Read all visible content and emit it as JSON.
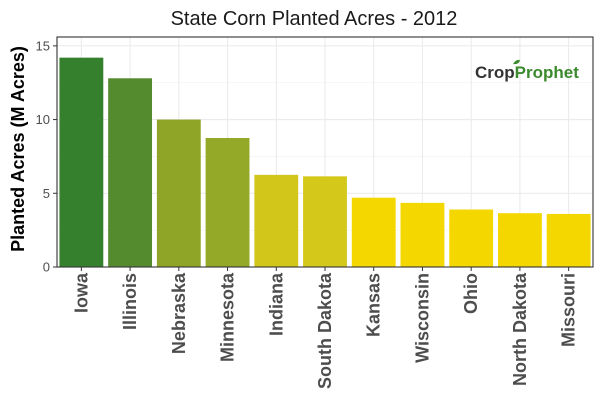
{
  "chart_data": {
    "type": "bar",
    "title": "State Corn Planted Acres - 2012",
    "xlabel": "",
    "ylabel": "Planted Acres (M Acres)",
    "ylim": [
      0,
      15.6
    ],
    "yticks": [
      0,
      5,
      10,
      15
    ],
    "grid": true,
    "categories": [
      "Iowa",
      "Illinois",
      "Nebraska",
      "Minnesota",
      "Indiana",
      "South Dakota",
      "Kansas",
      "Wisconsin",
      "Ohio",
      "North Dakota",
      "Missouri"
    ],
    "values": [
      14.2,
      12.8,
      10.0,
      8.75,
      6.25,
      6.15,
      4.7,
      4.35,
      3.9,
      3.65,
      3.6
    ],
    "colors": [
      "#35802d",
      "#548b2f",
      "#8fa528",
      "#94a928",
      "#d2c61b",
      "#d4c81a",
      "#f5d700",
      "#f5d700",
      "#f5d700",
      "#f5d700",
      "#f5d700"
    ]
  },
  "watermark": {
    "part1": "Crop",
    "part2": "Prophet",
    "color1": "#333333",
    "color2": "#3c8a2e"
  }
}
